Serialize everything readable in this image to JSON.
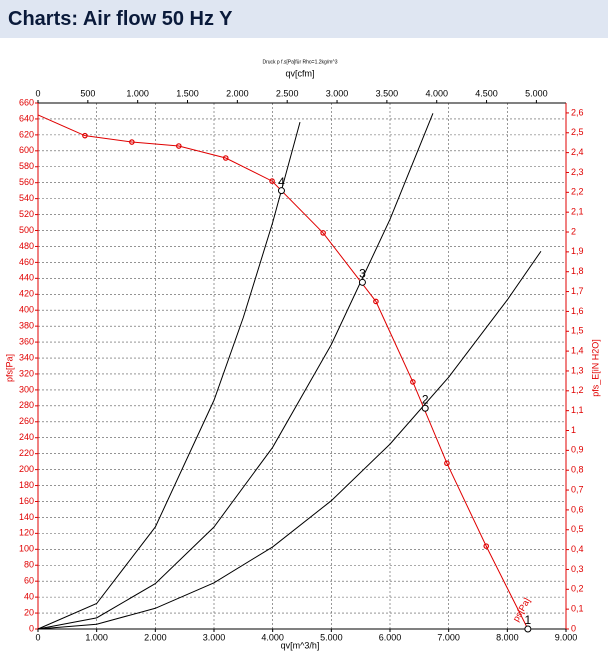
{
  "header": {
    "title": "Charts: Air flow 50 Hz Y"
  },
  "chart_data": {
    "type": "line",
    "title": "Druck p f.s[Pa]für Rho=1.2kg/m^3",
    "x_label": "qv[m^3/h]",
    "x2_label": "qv[cfm]",
    "y_label": "pfs[Pa]",
    "y2_label": "pfs_E[iN H2O]",
    "annotation": "ps[Pa]",
    "xlim": [
      0,
      9000
    ],
    "xticks": [
      0,
      {
        "value": 1000,
        "label": "1.000"
      },
      {
        "value": 2000,
        "label": "2.000"
      },
      {
        "value": 3000,
        "label": "3.000"
      },
      {
        "value": 4000,
        "label": "4.000"
      },
      {
        "value": 5000,
        "label": "5.000"
      },
      {
        "value": 6000,
        "label": "6.000"
      },
      {
        "value": 7000,
        "label": "7.000"
      },
      {
        "value": 8000,
        "label": "8.000"
      },
      {
        "value": 9000,
        "label": "9.000"
      }
    ],
    "x2lim": [
      0,
      5297
    ],
    "x2ticks": [
      0,
      500,
      {
        "value": 1000,
        "label": "1.000"
      },
      {
        "value": 1500,
        "label": "1.500"
      },
      {
        "value": 2000,
        "label": "2.000"
      },
      {
        "value": 2500,
        "label": "2.500"
      },
      {
        "value": 3000,
        "label": "3.000"
      },
      {
        "value": 3500,
        "label": "3.500"
      },
      {
        "value": 4000,
        "label": "4.000"
      },
      {
        "value": 4500,
        "label": "4.500"
      },
      {
        "value": 5000,
        "label": "5.000"
      }
    ],
    "ylim": [
      0,
      660
    ],
    "yticks": [
      0,
      20,
      40,
      60,
      80,
      100,
      120,
      140,
      160,
      180,
      200,
      220,
      240,
      260,
      280,
      300,
      320,
      340,
      360,
      380,
      400,
      420,
      440,
      460,
      480,
      500,
      520,
      540,
      560,
      580,
      600,
      620,
      640,
      660
    ],
    "y2lim": [
      0,
      2.65
    ],
    "y2ticks": [
      0,
      {
        "value": 0.1,
        "label": "0,1"
      },
      {
        "value": 0.2,
        "label": "0,2"
      },
      {
        "value": 0.3,
        "label": "0,3"
      },
      {
        "value": 0.4,
        "label": "0,4"
      },
      {
        "value": 0.5,
        "label": "0,5"
      },
      {
        "value": 0.6,
        "label": "0,6"
      },
      {
        "value": 0.7,
        "label": "0,7"
      },
      {
        "value": 0.8,
        "label": "0,8"
      },
      {
        "value": 0.9,
        "label": "0,9"
      },
      1,
      {
        "value": 1.1,
        "label": "1,1"
      },
      {
        "value": 1.2,
        "label": "1,2"
      },
      {
        "value": 1.3,
        "label": "1,3"
      },
      {
        "value": 1.4,
        "label": "1,4"
      },
      {
        "value": 1.5,
        "label": "1,5"
      },
      {
        "value": 1.6,
        "label": "1,6"
      },
      {
        "value": 1.7,
        "label": "1,7"
      },
      {
        "value": 1.8,
        "label": "1,8"
      },
      {
        "value": 1.9,
        "label": "1,9"
      },
      2,
      {
        "value": 2.1,
        "label": "2,1"
      },
      {
        "value": 2.2,
        "label": "2,2"
      },
      {
        "value": 2.3,
        "label": "2,3"
      },
      {
        "value": 2.4,
        "label": "2,4"
      },
      {
        "value": 2.5,
        "label": "2,5"
      },
      {
        "value": 2.6,
        "label": "2,6"
      }
    ],
    "grid": true,
    "series": [
      {
        "color": "#e00000",
        "markers": true,
        "x": [
          0,
          800,
          1600,
          2400,
          3200,
          3990,
          4860,
          5760,
          6390,
          6970,
          7640,
          8350
        ],
        "values": [
          645,
          619,
          611,
          606,
          591,
          562,
          497,
          411,
          310,
          208,
          104,
          0
        ]
      },
      {
        "color": "#000000",
        "markers": false,
        "x": [
          0,
          1000,
          2000,
          3000,
          3500,
          4000,
          4466
        ],
        "values": [
          0,
          32,
          128,
          287,
          391,
          510,
          636
        ]
      },
      {
        "color": "#000000",
        "markers": false,
        "x": [
          0,
          1000,
          2000,
          3000,
          4000,
          5000,
          6000,
          6732
        ],
        "values": [
          0,
          14,
          57,
          128,
          228,
          357,
          514,
          647
        ]
      },
      {
        "color": "#000000",
        "markers": false,
        "x": [
          0,
          1000,
          2000,
          3000,
          4000,
          5000,
          6000,
          7000,
          8000,
          8573
        ],
        "values": [
          0,
          6,
          26,
          58,
          103,
          161,
          232,
          316,
          413,
          474
        ]
      }
    ],
    "operating_points": {
      "labels": [
        "4",
        "3",
        "2",
        "1"
      ],
      "x": [
        4150,
        5530,
        6600,
        8350
      ],
      "values": [
        550,
        435,
        277,
        0
      ]
    }
  }
}
